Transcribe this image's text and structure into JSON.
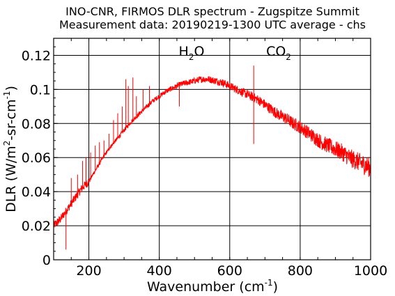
{
  "chart_data": {
    "type": "line",
    "title": "INO-CNR, FIRMOS DLR spectrum - Zugspitze Summit",
    "subtitle": "Measurement data: 20190219-1300 UTC average - chs",
    "xlabel": {
      "prefix": "Wavenumber (cm",
      "superscript": "-1",
      "suffix": ")"
    },
    "ylabel": {
      "prefix": "DLR (W/m",
      "sup1": "2",
      "middle": "-sr-cm",
      "sup2": "-1",
      "suffix": ")"
    },
    "xlim": [
      100,
      1000
    ],
    "ylim": [
      0,
      0.13
    ],
    "xticks": [
      200,
      400,
      600,
      800,
      1000
    ],
    "yticks": [
      0,
      0.02,
      0.04,
      0.06,
      0.08,
      0.1,
      0.12
    ],
    "ytick_labels": [
      "0",
      "0.02",
      "0.04",
      "0.06",
      "0.08",
      "0.1",
      "0.12"
    ],
    "grid": true,
    "series_color": "#ff0000",
    "annotations": [
      {
        "base": "H",
        "sub": "2",
        "rest": "O",
        "x": 545
      },
      {
        "base": "CO",
        "sub": "2",
        "rest": "",
        "x": 667
      }
    ],
    "envelope": {
      "x": [
        100,
        120,
        140,
        160,
        180,
        200,
        220,
        240,
        260,
        280,
        300,
        320,
        340,
        360,
        380,
        400,
        420,
        440,
        460,
        480,
        500,
        520,
        540,
        560,
        580,
        600,
        620,
        640,
        660,
        680,
        700,
        720,
        740,
        760,
        780,
        800,
        820,
        840,
        860,
        880,
        900,
        920,
        940,
        960,
        980,
        1000
      ],
      "y": [
        0.02,
        0.024,
        0.03,
        0.036,
        0.042,
        0.046,
        0.053,
        0.06,
        0.066,
        0.071,
        0.076,
        0.081,
        0.085,
        0.089,
        0.093,
        0.096,
        0.099,
        0.101,
        0.103,
        0.104,
        0.105,
        0.106,
        0.106,
        0.105,
        0.104,
        0.102,
        0.1,
        0.098,
        0.096,
        0.094,
        0.091,
        0.088,
        0.085,
        0.083,
        0.08,
        0.078,
        0.075,
        0.072,
        0.069,
        0.067,
        0.065,
        0.063,
        0.06,
        0.058,
        0.056,
        0.054
      ]
    },
    "spikes": [
      {
        "x": 135,
        "y": 0.006
      },
      {
        "x": 150,
        "y": 0.048
      },
      {
        "x": 168,
        "y": 0.05
      },
      {
        "x": 182,
        "y": 0.058
      },
      {
        "x": 192,
        "y": 0.06
      },
      {
        "x": 205,
        "y": 0.063
      },
      {
        "x": 218,
        "y": 0.067
      },
      {
        "x": 230,
        "y": 0.069
      },
      {
        "x": 243,
        "y": 0.07
      },
      {
        "x": 257,
        "y": 0.074
      },
      {
        "x": 270,
        "y": 0.082
      },
      {
        "x": 282,
        "y": 0.086
      },
      {
        "x": 295,
        "y": 0.09
      },
      {
        "x": 305,
        "y": 0.106
      },
      {
        "x": 312,
        "y": 0.102
      },
      {
        "x": 325,
        "y": 0.107
      },
      {
        "x": 335,
        "y": 0.096
      },
      {
        "x": 354,
        "y": 0.1
      },
      {
        "x": 372,
        "y": 0.102
      },
      {
        "x": 457,
        "y": 0.09
      },
      {
        "x": 668,
        "y": 0.114
      },
      {
        "x": 668,
        "y": 0.068
      }
    ],
    "noise_stddev": [
      0.001,
      0.006
    ]
  }
}
